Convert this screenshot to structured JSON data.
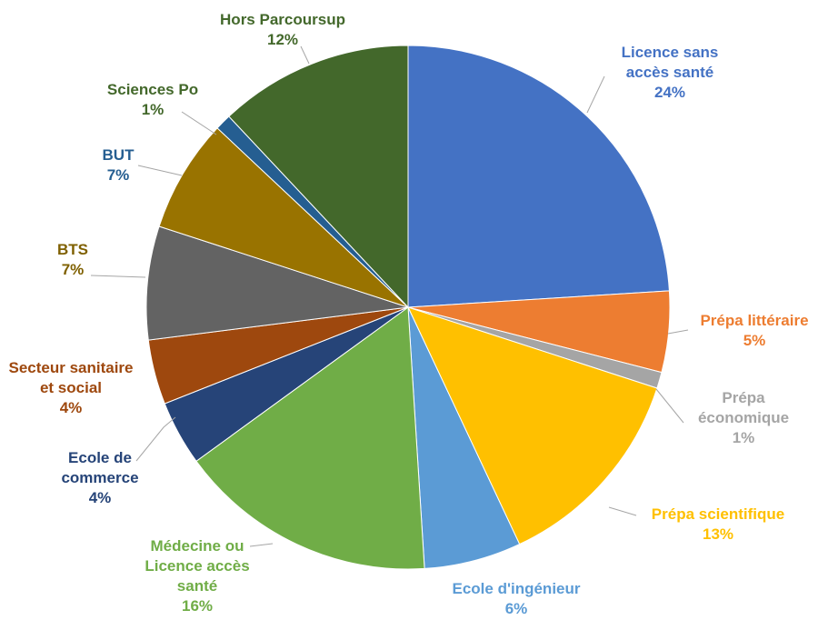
{
  "chart_data": {
    "type": "pie",
    "title": "",
    "start_angle_deg": 0,
    "direction": "clockwise",
    "slices": [
      {
        "label": [
          "Licence sans",
          "accès santé"
        ],
        "value": 24,
        "pct_label": "24%",
        "color": "#4472C4"
      },
      {
        "label": [
          "Prépa littéraire"
        ],
        "value": 5,
        "pct_label": "5%",
        "color": "#ED7D31"
      },
      {
        "label": [
          "Prépa",
          "économique"
        ],
        "value": 1,
        "pct_label": "1%",
        "color": "#A5A5A5"
      },
      {
        "label": [
          "Prépa scientifique"
        ],
        "value": 13,
        "pct_label": "13%",
        "color": "#FFC000"
      },
      {
        "label": [
          "Ecole d'ingénieur"
        ],
        "value": 6,
        "pct_label": "6%",
        "color": "#5B9BD5"
      },
      {
        "label": [
          "Médecine ou",
          "Licence accès",
          "santé"
        ],
        "value": 16,
        "pct_label": "16%",
        "color": "#70AD47"
      },
      {
        "label": [
          "Ecole de",
          "commerce"
        ],
        "value": 4,
        "pct_label": "4%",
        "color": "#264478"
      },
      {
        "label": [
          "Secteur sanitaire",
          "et social"
        ],
        "value": 4,
        "pct_label": "4%",
        "color": "#9E480E"
      },
      {
        "label": [
          "BTS"
        ],
        "value": 7,
        "pct_label": "7%",
        "color": "#636363"
      },
      {
        "label": [
          "BUT"
        ],
        "value": 7,
        "pct_label": "7%",
        "color": "#997300"
      },
      {
        "label": [
          "Sciences Po"
        ],
        "value": 1,
        "pct_label": "1%",
        "color": "#255E91"
      },
      {
        "label": [
          "Hors Parcoursup"
        ],
        "value": 12,
        "pct_label": "12%",
        "color": "#43682B"
      }
    ]
  }
}
